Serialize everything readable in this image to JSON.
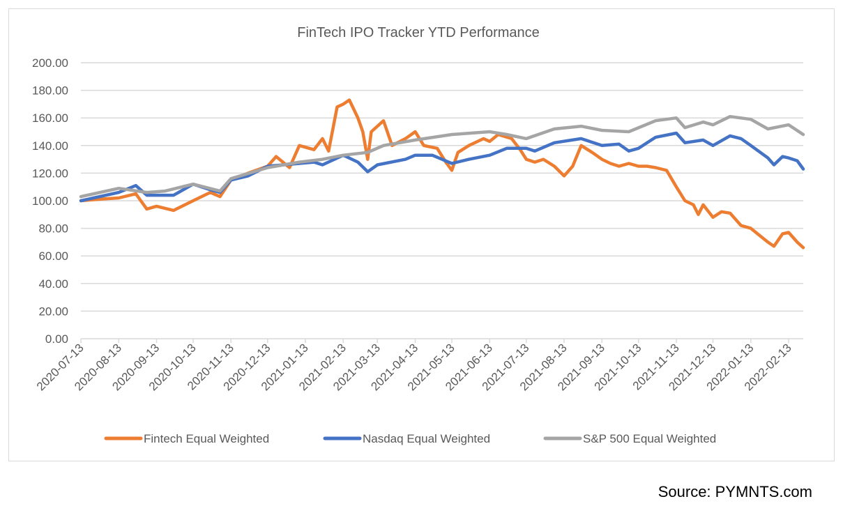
{
  "source": "Source: PYMNTS.com",
  "chart_data": {
    "type": "line",
    "title": "FinTech IPO Tracker YTD Performance",
    "xlabel": "",
    "ylabel": "",
    "ylim": [
      0,
      200
    ],
    "yticks": [
      "0.00",
      "20.00",
      "40.00",
      "60.00",
      "80.00",
      "100.00",
      "120.00",
      "140.00",
      "160.00",
      "180.00",
      "200.00"
    ],
    "xlim": [
      "2020-07-13",
      "2022-02-25"
    ],
    "xticks": [
      "2020-07-13",
      "2020-08-13",
      "2020-09-13",
      "2020-10-13",
      "2020-11-13",
      "2020-12-13",
      "2021-01-13",
      "2021-02-13",
      "2021-03-13",
      "2021-04-13",
      "2021-05-13",
      "2021-06-13",
      "2021-07-13",
      "2021-08-13",
      "2021-09-13",
      "2021-10-13",
      "2021-11-13",
      "2021-12-13",
      "2022-01-13",
      "2022-02-13"
    ],
    "grid": true,
    "legend_position": "bottom",
    "series": [
      {
        "name": "Fintech Equal Weighted",
        "color": "#ED7D31",
        "points": [
          [
            "2020-07-13",
            100
          ],
          [
            "2020-07-27",
            101
          ],
          [
            "2020-08-13",
            102
          ],
          [
            "2020-08-27",
            105
          ],
          [
            "2020-09-05",
            94
          ],
          [
            "2020-09-13",
            96
          ],
          [
            "2020-09-27",
            93
          ],
          [
            "2020-10-13",
            100
          ],
          [
            "2020-10-27",
            106
          ],
          [
            "2020-11-04",
            103
          ],
          [
            "2020-11-13",
            115
          ],
          [
            "2020-11-27",
            120
          ],
          [
            "2020-12-13",
            125
          ],
          [
            "2020-12-20",
            132
          ],
          [
            "2020-12-31",
            124
          ],
          [
            "2021-01-08",
            140
          ],
          [
            "2021-01-20",
            137
          ],
          [
            "2021-01-27",
            145
          ],
          [
            "2021-02-01",
            136
          ],
          [
            "2021-02-08",
            168
          ],
          [
            "2021-02-13",
            170
          ],
          [
            "2021-02-18",
            173
          ],
          [
            "2021-02-25",
            160
          ],
          [
            "2021-03-01",
            150
          ],
          [
            "2021-03-05",
            130
          ],
          [
            "2021-03-08",
            150
          ],
          [
            "2021-03-18",
            158
          ],
          [
            "2021-03-25",
            140
          ],
          [
            "2021-04-05",
            145
          ],
          [
            "2021-04-13",
            150
          ],
          [
            "2021-04-20",
            140
          ],
          [
            "2021-05-01",
            138
          ],
          [
            "2021-05-08",
            128
          ],
          [
            "2021-05-13",
            122
          ],
          [
            "2021-05-18",
            135
          ],
          [
            "2021-05-27",
            140
          ],
          [
            "2021-06-08",
            145
          ],
          [
            "2021-06-13",
            143
          ],
          [
            "2021-06-20",
            148
          ],
          [
            "2021-07-01",
            145
          ],
          [
            "2021-07-08",
            137
          ],
          [
            "2021-07-13",
            130
          ],
          [
            "2021-07-20",
            128
          ],
          [
            "2021-07-27",
            130
          ],
          [
            "2021-08-05",
            125
          ],
          [
            "2021-08-13",
            118
          ],
          [
            "2021-08-20",
            125
          ],
          [
            "2021-08-27",
            140
          ],
          [
            "2021-09-05",
            135
          ],
          [
            "2021-09-13",
            130
          ],
          [
            "2021-09-20",
            127
          ],
          [
            "2021-09-27",
            125
          ],
          [
            "2021-10-05",
            127
          ],
          [
            "2021-10-13",
            125
          ],
          [
            "2021-10-20",
            125
          ],
          [
            "2021-10-27",
            124
          ],
          [
            "2021-11-05",
            122
          ],
          [
            "2021-11-13",
            110
          ],
          [
            "2021-11-20",
            100
          ],
          [
            "2021-11-27",
            97
          ],
          [
            "2021-12-01",
            90
          ],
          [
            "2021-12-05",
            97
          ],
          [
            "2021-12-13",
            88
          ],
          [
            "2021-12-20",
            92
          ],
          [
            "2021-12-27",
            91
          ],
          [
            "2022-01-05",
            82
          ],
          [
            "2022-01-13",
            80
          ],
          [
            "2022-01-20",
            75
          ],
          [
            "2022-01-27",
            70
          ],
          [
            "2022-02-01",
            67
          ],
          [
            "2022-02-08",
            76
          ],
          [
            "2022-02-13",
            77
          ],
          [
            "2022-02-20",
            70
          ],
          [
            "2022-02-25",
            66
          ]
        ]
      },
      {
        "name": "Nasdaq Equal Weighted",
        "color": "#4472C4",
        "points": [
          [
            "2020-07-13",
            100
          ],
          [
            "2020-08-13",
            106
          ],
          [
            "2020-08-27",
            111
          ],
          [
            "2020-09-05",
            104
          ],
          [
            "2020-09-27",
            104
          ],
          [
            "2020-10-13",
            112
          ],
          [
            "2020-10-27",
            108
          ],
          [
            "2020-11-04",
            106
          ],
          [
            "2020-11-13",
            115
          ],
          [
            "2020-11-27",
            118
          ],
          [
            "2020-12-13",
            125
          ],
          [
            "2021-01-08",
            127
          ],
          [
            "2021-01-20",
            128
          ],
          [
            "2021-01-27",
            126
          ],
          [
            "2021-02-13",
            133
          ],
          [
            "2021-02-25",
            128
          ],
          [
            "2021-03-05",
            121
          ],
          [
            "2021-03-13",
            126
          ],
          [
            "2021-04-05",
            130
          ],
          [
            "2021-04-13",
            133
          ],
          [
            "2021-04-27",
            133
          ],
          [
            "2021-05-13",
            127
          ],
          [
            "2021-05-27",
            130
          ],
          [
            "2021-06-13",
            133
          ],
          [
            "2021-06-27",
            138
          ],
          [
            "2021-07-13",
            138
          ],
          [
            "2021-07-20",
            136
          ],
          [
            "2021-08-05",
            142
          ],
          [
            "2021-08-27",
            145
          ],
          [
            "2021-09-13",
            140
          ],
          [
            "2021-09-27",
            141
          ],
          [
            "2021-10-05",
            136
          ],
          [
            "2021-10-13",
            138
          ],
          [
            "2021-10-27",
            146
          ],
          [
            "2021-11-13",
            149
          ],
          [
            "2021-11-20",
            142
          ],
          [
            "2021-12-05",
            144
          ],
          [
            "2021-12-13",
            140
          ],
          [
            "2021-12-27",
            147
          ],
          [
            "2022-01-05",
            145
          ],
          [
            "2022-01-13",
            140
          ],
          [
            "2022-01-27",
            131
          ],
          [
            "2022-02-01",
            126
          ],
          [
            "2022-02-08",
            132
          ],
          [
            "2022-02-13",
            131
          ],
          [
            "2022-02-20",
            129
          ],
          [
            "2022-02-25",
            123
          ]
        ]
      },
      {
        "name": "S&P 500 Equal Weighted",
        "color": "#A5A5A5",
        "points": [
          [
            "2020-07-13",
            103
          ],
          [
            "2020-08-13",
            109
          ],
          [
            "2020-09-05",
            106
          ],
          [
            "2020-09-20",
            107
          ],
          [
            "2020-10-13",
            112
          ],
          [
            "2020-11-04",
            107
          ],
          [
            "2020-11-13",
            116
          ],
          [
            "2020-12-13",
            124
          ],
          [
            "2021-01-08",
            128
          ],
          [
            "2021-01-27",
            130
          ],
          [
            "2021-02-13",
            133
          ],
          [
            "2021-03-05",
            135
          ],
          [
            "2021-03-18",
            140
          ],
          [
            "2021-04-13",
            144
          ],
          [
            "2021-05-13",
            148
          ],
          [
            "2021-06-13",
            150
          ],
          [
            "2021-06-27",
            148
          ],
          [
            "2021-07-13",
            145
          ],
          [
            "2021-08-05",
            152
          ],
          [
            "2021-08-27",
            154
          ],
          [
            "2021-09-13",
            151
          ],
          [
            "2021-10-05",
            150
          ],
          [
            "2021-10-27",
            158
          ],
          [
            "2021-11-13",
            160
          ],
          [
            "2021-11-20",
            153
          ],
          [
            "2021-12-05",
            157
          ],
          [
            "2021-12-13",
            155
          ],
          [
            "2021-12-27",
            161
          ],
          [
            "2022-01-13",
            159
          ],
          [
            "2022-01-27",
            152
          ],
          [
            "2022-02-13",
            155
          ],
          [
            "2022-02-25",
            148
          ]
        ]
      }
    ]
  }
}
